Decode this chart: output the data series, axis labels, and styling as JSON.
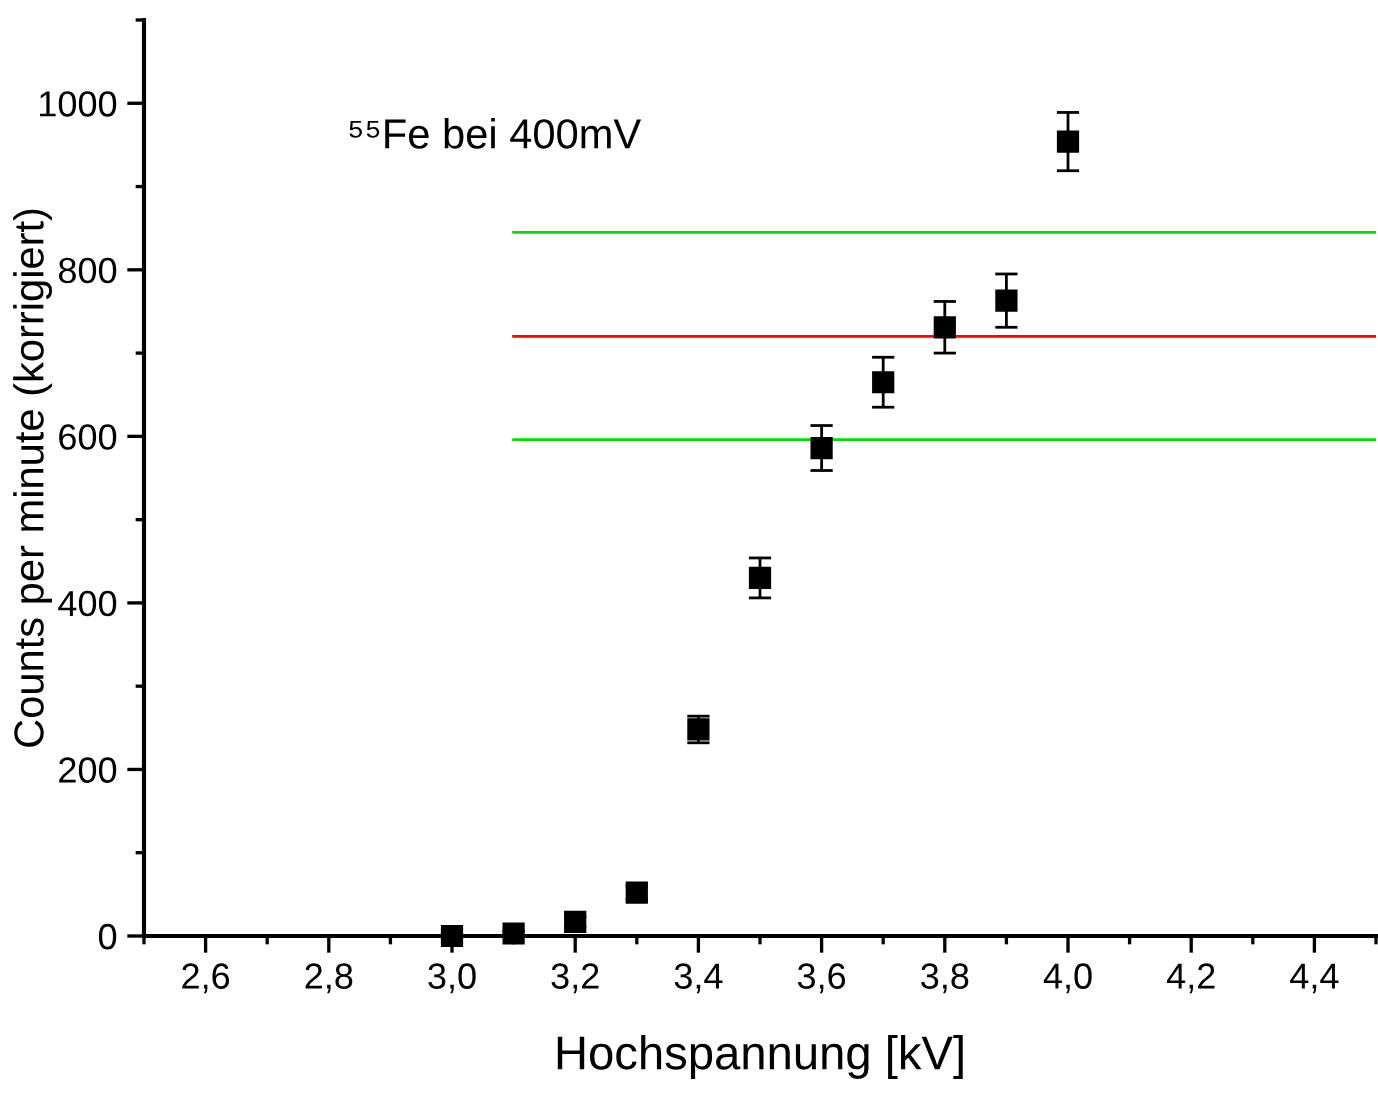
{
  "chart_data": {
    "type": "scatter",
    "xlabel": "Hochspannung [kV]",
    "ylabel": "Counts per minute (korrigiert)",
    "annotations": [
      "⁵⁵Fe bei 400mV"
    ],
    "xlim": [
      2.5,
      4.5
    ],
    "ylim": [
      0,
      1100
    ],
    "xticks": [
      {
        "value": 2.6,
        "label": "2,6"
      },
      {
        "value": 2.8,
        "label": "2,8"
      },
      {
        "value": 3.0,
        "label": "3,0"
      },
      {
        "value": 3.2,
        "label": "3,2"
      },
      {
        "value": 3.4,
        "label": "3,4"
      },
      {
        "value": 3.6,
        "label": "3,6"
      },
      {
        "value": 3.8,
        "label": "3,8"
      },
      {
        "value": 4.0,
        "label": "4,0"
      },
      {
        "value": 4.2,
        "label": "4,2"
      },
      {
        "value": 4.4,
        "label": "4,4"
      }
    ],
    "yticks": [
      0,
      200,
      400,
      600,
      800,
      1000
    ],
    "series": [
      {
        "marker": "square",
        "color": "#000000",
        "x": [
          3.0,
          3.1,
          3.2,
          3.3,
          3.4,
          3.5,
          3.6,
          3.7,
          3.8,
          3.9,
          4.0
        ],
        "values": [
          0,
          3,
          17,
          52,
          248,
          430,
          586,
          665,
          731,
          763,
          954
        ],
        "errors": [
          2,
          3,
          6,
          8,
          16,
          24,
          27,
          30,
          31,
          32,
          35
        ]
      },
      {
        "type": "line",
        "color": "#00e000",
        "x": [
          3.1,
          4.5
        ],
        "values": [
          845,
          845
        ]
      },
      {
        "type": "line",
        "color": "#ff0000",
        "x": [
          3.1,
          4.5
        ],
        "values": [
          720,
          720
        ]
      },
      {
        "type": "line",
        "color": "#00e000",
        "x": [
          3.1,
          4.5
        ],
        "values": [
          596,
          596
        ]
      }
    ]
  }
}
